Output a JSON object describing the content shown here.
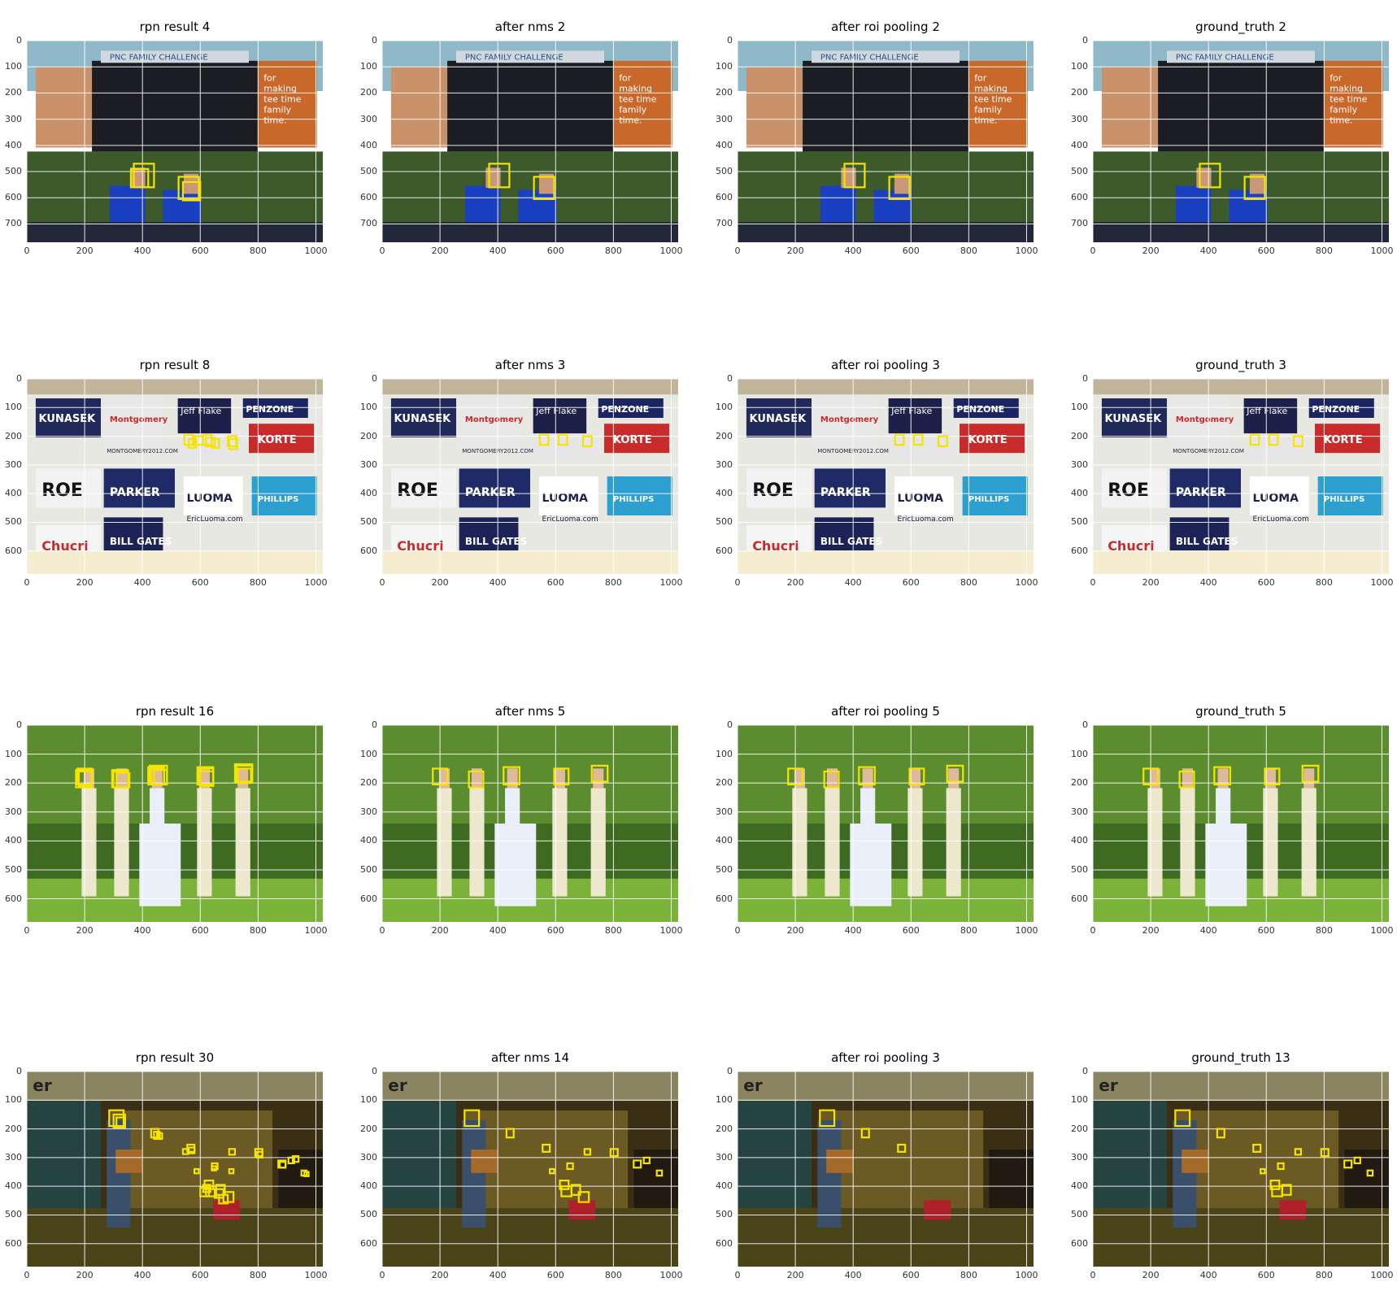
{
  "colors": {
    "box": "#f5e400",
    "grid": "#ffffff"
  },
  "x_ticks": [
    "0",
    "200",
    "400",
    "600",
    "800",
    "1000"
  ],
  "rows": [
    {
      "scene": "golf",
      "y_ticks": [
        "0",
        "100",
        "200",
        "300",
        "400",
        "500",
        "600",
        "700"
      ],
      "panels": [
        {
          "title": "rpn result 4",
          "boxes": 4
        },
        {
          "title": "after nms 2",
          "boxes": 2
        },
        {
          "title": "after roi pooling 2",
          "boxes": 2
        },
        {
          "title": "ground_truth 2",
          "boxes": 2
        }
      ]
    },
    {
      "scene": "signs",
      "y_ticks": [
        "0",
        "100",
        "200",
        "300",
        "400",
        "500",
        "600"
      ],
      "panels": [
        {
          "title": "rpn result 8",
          "boxes": 8
        },
        {
          "title": "after nms 3",
          "boxes": 3
        },
        {
          "title": "after roi pooling 3",
          "boxes": 3
        },
        {
          "title": "ground_truth 3",
          "boxes": 3
        }
      ]
    },
    {
      "scene": "wedding",
      "y_ticks": [
        "0",
        "100",
        "200",
        "300",
        "400",
        "500",
        "600"
      ],
      "panels": [
        {
          "title": "rpn result 16",
          "boxes": 16
        },
        {
          "title": "after nms 5",
          "boxes": 5
        },
        {
          "title": "after roi pooling 5",
          "boxes": 5
        },
        {
          "title": "ground_truth 5",
          "boxes": 5
        }
      ]
    },
    {
      "scene": "indoor",
      "y_ticks": [
        "0",
        "100",
        "200",
        "300",
        "400",
        "500",
        "600"
      ],
      "panels": [
        {
          "title": "rpn result 30",
          "boxes": 30
        },
        {
          "title": "after nms 14",
          "boxes": 14
        },
        {
          "title": "after roi pooling 3",
          "boxes": 3
        },
        {
          "title": "ground_truth 13",
          "boxes": 13
        }
      ]
    }
  ],
  "golf_texts": {
    "banner": "PNC FAMILY CHALLENGE",
    "right_sign": [
      "for",
      "making",
      "tee time",
      "family",
      "time."
    ]
  },
  "sign_texts": [
    "KUNASEK",
    "Montgomery",
    "Jeff Flake",
    "PENZONE",
    "KORTE",
    "ROE",
    "PARKER",
    "LUOMA",
    "PHILLIPS",
    "Chucri",
    "BILL GATES",
    "EricLuoma.com",
    "MONTGOMERY2012.COM"
  ],
  "indoor_texts": {
    "corner": "er"
  }
}
